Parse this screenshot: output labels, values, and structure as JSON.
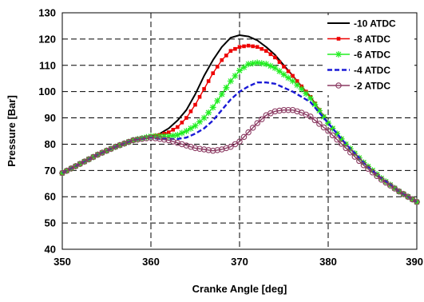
{
  "chart_data": {
    "type": "line",
    "title": "",
    "xlabel": "Cranke Angle [deg]",
    "ylabel": "Pressure [Bar]",
    "xlim": [
      350,
      390
    ],
    "ylim": [
      40,
      130
    ],
    "x_ticks": [
      350,
      360,
      370,
      380,
      390
    ],
    "y_ticks": [
      40,
      50,
      60,
      70,
      80,
      90,
      100,
      110,
      120,
      130
    ],
    "x_tick_labels": [
      "350",
      "360",
      "370",
      "380",
      "390"
    ],
    "y_tick_labels": [
      "40",
      "50",
      "60",
      "70",
      "80",
      "90",
      "100",
      "110",
      "120",
      "130"
    ],
    "grid": "dashed",
    "legend_position": "top-right",
    "series": [
      {
        "name": "-10 ATDC",
        "color": "#000000",
        "line_style": "solid",
        "marker": "none",
        "x": [
          350,
          352,
          354,
          356,
          358,
          360,
          361,
          362,
          363,
          364,
          365,
          366,
          367,
          368,
          369,
          370,
          371,
          372,
          373,
          374,
          375,
          376,
          377,
          378,
          380,
          382,
          384,
          386,
          388,
          390
        ],
        "y": [
          69,
          72.5,
          76,
          79,
          81.5,
          83,
          84,
          86,
          89,
          93,
          99,
          106,
          112,
          117,
          120.5,
          121.5,
          121,
          119.5,
          117,
          114,
          110,
          106,
          102,
          98,
          88,
          80,
          73,
          67,
          62,
          58
        ]
      },
      {
        "name": "-8 ATDC",
        "color": "#ee0000",
        "line_style": "solid",
        "marker": "square",
        "x": [
          350,
          352,
          354,
          356,
          358,
          360,
          361,
          362,
          363,
          364,
          365,
          366,
          367,
          368,
          369,
          370,
          371,
          372,
          373,
          374,
          375,
          376,
          377,
          378,
          380,
          382,
          384,
          386,
          388,
          390
        ],
        "y": [
          69,
          72.5,
          76,
          79,
          81.5,
          83,
          83.5,
          84.5,
          86.5,
          90,
          95,
          101,
          107,
          112,
          115.5,
          117,
          117.5,
          117,
          115.5,
          113,
          109.5,
          106,
          102,
          98,
          88,
          80,
          73,
          67,
          62,
          58
        ]
      },
      {
        "name": "-6 ATDC",
        "color": "#22ee22",
        "line_style": "solid",
        "marker": "star",
        "x": [
          350,
          352,
          354,
          356,
          358,
          360,
          361,
          362,
          363,
          364,
          365,
          366,
          367,
          368,
          369,
          370,
          371,
          372,
          373,
          374,
          375,
          376,
          377,
          378,
          380,
          382,
          384,
          386,
          388,
          390
        ],
        "y": [
          69,
          72.5,
          76,
          79,
          81.5,
          83,
          83,
          83,
          83.5,
          85,
          87,
          90,
          94,
          99,
          104,
          108,
          110.5,
          111,
          110.5,
          109,
          106.5,
          104,
          101,
          97.5,
          88,
          80,
          73,
          67,
          62,
          58
        ]
      },
      {
        "name": "-4 ATDC",
        "color": "#1a1ad6",
        "line_style": "dashed",
        "marker": "none",
        "x": [
          350,
          352,
          354,
          356,
          358,
          360,
          361,
          362,
          363,
          364,
          365,
          366,
          367,
          368,
          369,
          370,
          371,
          372,
          373,
          374,
          375,
          376,
          377,
          378,
          380,
          382,
          384,
          386,
          388,
          390
        ],
        "y": [
          69,
          72.5,
          76,
          79,
          81.5,
          82.5,
          82,
          82,
          82,
          82.5,
          84,
          86,
          89,
          93,
          97,
          100,
          102,
          103.5,
          103.5,
          103,
          101.5,
          100,
          98,
          96,
          88,
          80,
          73,
          67,
          62,
          58
        ]
      },
      {
        "name": "-2 ATDC",
        "color": "#8b3a62",
        "line_style": "solid",
        "marker": "circle",
        "x": [
          350,
          352,
          354,
          356,
          358,
          360,
          361,
          362,
          363,
          364,
          365,
          366,
          367,
          368,
          369,
          370,
          371,
          372,
          373,
          374,
          375,
          376,
          377,
          378,
          380,
          382,
          384,
          386,
          388,
          390
        ],
        "y": [
          69,
          72.5,
          76,
          79,
          81.5,
          82.5,
          82,
          81.5,
          80.5,
          79.5,
          78.5,
          78,
          77.5,
          78,
          79,
          81,
          84.5,
          88,
          91,
          92.5,
          93,
          93,
          92,
          90.5,
          85,
          78.5,
          72,
          66.5,
          62,
          58
        ]
      }
    ]
  }
}
